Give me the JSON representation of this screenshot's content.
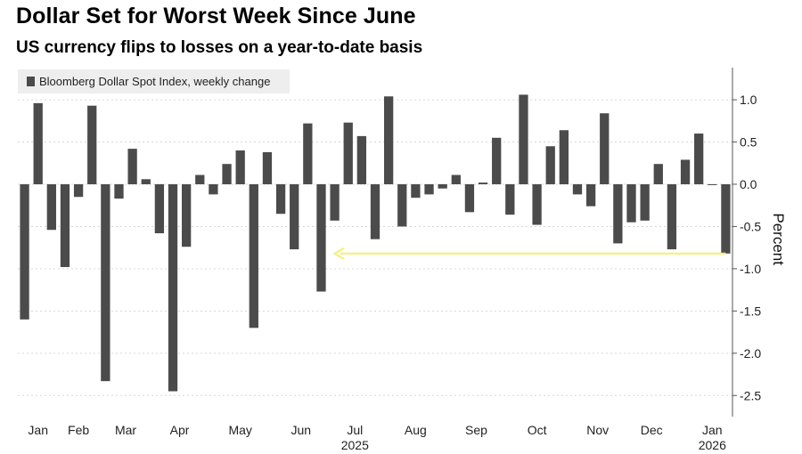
{
  "header": {
    "title": "Dollar Set for Worst Week Since June",
    "subtitle": "US currency flips to losses on a year-to-date basis"
  },
  "colors": {
    "bar": "#4b4b4b",
    "grid": "#d6d6d6",
    "highlight_arrow": "#f4f07a",
    "legend_bg": "#eeeeee"
  },
  "chart_data": {
    "type": "bar",
    "title": "Dollar Set for Worst Week Since June",
    "subtitle": "US currency flips to losses on a year-to-date basis",
    "series": [
      {
        "name": "Bloomberg Dollar Spot Index, weekly change",
        "values": [
          -1.6,
          0.96,
          -0.54,
          -0.98,
          -0.15,
          0.93,
          -2.33,
          -0.17,
          0.42,
          0.06,
          -0.58,
          -2.45,
          -0.74,
          0.11,
          -0.12,
          0.24,
          0.4,
          -1.7,
          0.38,
          -0.35,
          -0.77,
          0.72,
          -1.27,
          -0.43,
          0.73,
          0.57,
          -0.65,
          1.04,
          -0.5,
          -0.16,
          -0.12,
          -0.05,
          0.11,
          -0.33,
          0.02,
          0.55,
          -0.36,
          1.06,
          -0.48,
          0.45,
          0.64,
          -0.12,
          -0.26,
          0.84,
          -0.7,
          -0.45,
          -0.43,
          0.24,
          -0.77,
          0.29,
          0.6,
          -0.01,
          -0.82
        ]
      }
    ],
    "x_month_labels": [
      "Jan",
      "Feb",
      "Mar",
      "Apr",
      "May",
      "Jun",
      "Jul",
      "Aug",
      "Sep",
      "Oct",
      "Nov",
      "Dec",
      "Jan"
    ],
    "x_month_label_bar_index": [
      1,
      4,
      7.5,
      11.5,
      16,
      20.5,
      24.5,
      29,
      33.5,
      38,
      42.5,
      46.5,
      51
    ],
    "x_year_labels": [
      {
        "label": "2025",
        "month_index": 6
      },
      {
        "label": "2026",
        "month_index": 12
      }
    ],
    "y_ticks": [
      1.0,
      0.5,
      0.0,
      -0.5,
      -1.0,
      -1.5,
      -2.0,
      -2.5
    ],
    "y_tick_labels": [
      "1.0",
      "0.5",
      "0.0",
      "-0.5",
      "-1.0",
      "-1.5",
      "-2.0",
      "-2.5"
    ],
    "ylim": [
      -2.75,
      1.38
    ],
    "ylabel": "Percent",
    "xlabel": "",
    "grid": true,
    "legend": {
      "position": "top-left",
      "label": "Bloomberg Dollar Spot Index, weekly change"
    },
    "annotation": {
      "type": "arrow",
      "value": -0.82,
      "from_bar_index": 52,
      "to_bar_index": 23
    }
  }
}
